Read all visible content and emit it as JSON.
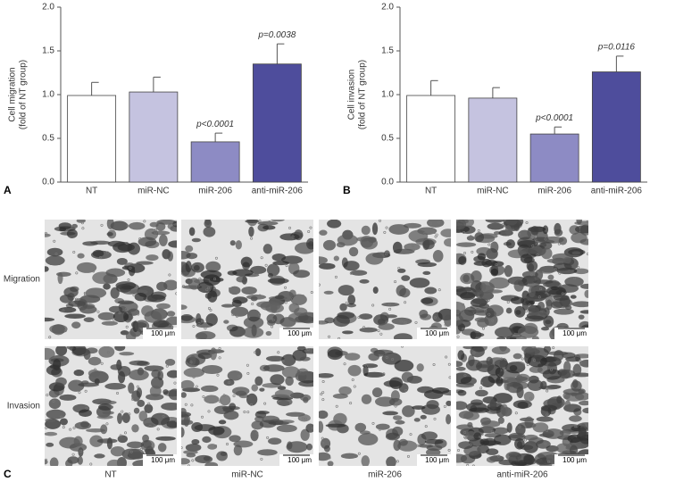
{
  "chart_data": [
    {
      "type": "bar",
      "panel": "A",
      "ylabel": [
        "Cell migration",
        "(fold of NT group)"
      ],
      "categories": [
        "NT",
        "miR-NC",
        "miR-206",
        "anti-miR-206"
      ],
      "values": [
        0.99,
        1.03,
        0.46,
        1.35
      ],
      "errors": [
        0.15,
        0.17,
        0.1,
        0.23
      ],
      "colors": [
        "#ffffff",
        "#c5c3e0",
        "#8d8bc4",
        "#4e4d9c"
      ],
      "annotations": [
        null,
        null,
        "p<0.0001",
        "p=0.0038"
      ],
      "ylim": [
        0,
        2
      ],
      "yticks": [
        {
          "value": 0,
          "label": "0.0"
        },
        0.5,
        {
          "value": 1,
          "label": "1.0"
        },
        1.5,
        {
          "value": 2,
          "label": "2.0"
        }
      ]
    },
    {
      "type": "bar",
      "panel": "B",
      "ylabel": [
        "Cell invasion",
        "(fold of NT group)"
      ],
      "categories": [
        "NT",
        "miR-NC",
        "miR-206",
        "anti-miR-206"
      ],
      "values": [
        0.99,
        0.96,
        0.55,
        1.26
      ],
      "errors": [
        0.17,
        0.12,
        0.08,
        0.18
      ],
      "colors": [
        "#ffffff",
        "#c5c3e0",
        "#8d8bc4",
        "#4e4d9c"
      ],
      "annotations": [
        null,
        null,
        "p<0.0001",
        "p=0.0116"
      ],
      "ylim": [
        0,
        2
      ],
      "yticks": [
        {
          "value": 0,
          "label": "0.0"
        },
        0.5,
        {
          "value": 1,
          "label": "1.0"
        },
        1.5,
        {
          "value": 2,
          "label": "2.0"
        }
      ]
    }
  ],
  "micrographs": {
    "panel": "C",
    "rows": [
      "Migration",
      "Invasion"
    ],
    "columns": [
      "NT",
      "miR-NC",
      "miR-206",
      "anti-miR-206"
    ],
    "scale_bar": "100 μm"
  }
}
